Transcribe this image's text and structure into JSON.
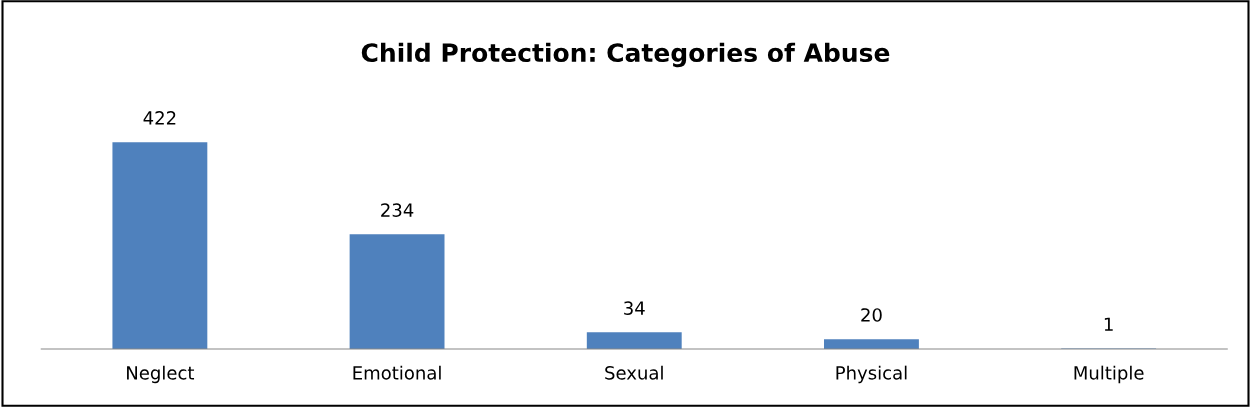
{
  "chart_data": {
    "type": "bar",
    "title": "Child Protection: Categories of Abuse",
    "categories": [
      "Neglect",
      "Emotional",
      "Sexual",
      "Physical",
      "Multiple"
    ],
    "values": [
      422,
      234,
      34,
      20,
      1
    ],
    "color": "#4f81bd",
    "data_labels": true,
    "grid": false,
    "legend": false
  }
}
